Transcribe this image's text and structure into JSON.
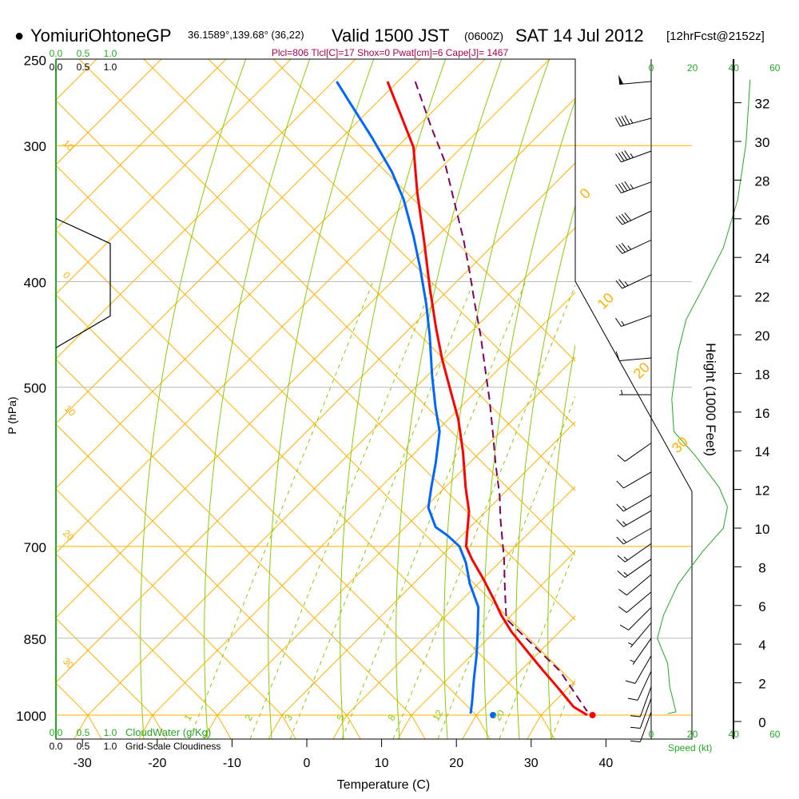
{
  "header": {
    "bullet": "●",
    "station": "YomiuriOhtoneGP",
    "coords": "36.1589°,139.68° (36,22)",
    "valid": "Valid 1500 JST",
    "utc": "(0600Z)",
    "date": "SAT 14 Jul 2012",
    "forecast": "[12hrFcst@2152z]",
    "indices": "Plcl=806 Tlcl[C]=17 Shox=0 Pwat[cm]=6 Cape[J]= 1467"
  },
  "colors": {
    "temperature": "#ff0000",
    "dewpoint": "#0066ff",
    "parcel": "#800060",
    "isotherm": "#ffb000",
    "moist": "#88cc00",
    "speed": "#22aa22",
    "indices": "#b0004f"
  },
  "chart_data": {
    "type": "line",
    "subtype": "skew-t log-p sounding",
    "xlabel": "Temperature (C)",
    "ylabel": "P (hPa)",
    "x_ticks": [
      "-30",
      "-20",
      "-10",
      "0",
      "10",
      "20",
      "30",
      "40"
    ],
    "x_tick_values": [
      -30,
      -20,
      -10,
      0,
      10,
      20,
      30,
      40
    ],
    "pressure_levels": [
      {
        "label": "250",
        "value": 250,
        "style": "none"
      },
      {
        "label": "300",
        "value": 300,
        "style": "orange"
      },
      {
        "label": "400",
        "value": 400,
        "style": "gray"
      },
      {
        "label": "500",
        "value": 500,
        "style": "gray"
      },
      {
        "label": "700",
        "value": 700,
        "style": "orange"
      },
      {
        "label": "850",
        "value": 850,
        "style": "gray"
      },
      {
        "label": "1000",
        "value": 1000,
        "style": "orange"
      }
    ],
    "isotherm_labels_left": [
      "10",
      "0",
      "10",
      "20",
      "30"
    ],
    "isotherm_labels_right": [
      "0",
      "10",
      "20",
      "30"
    ],
    "mixing_ratio_labels": [
      "1",
      "2",
      "3",
      "5",
      "8",
      "12",
      "20"
    ],
    "series": [
      {
        "name": "Temperature",
        "points": [
          [
            262,
            -35.8
          ],
          [
            282,
            -31.4
          ],
          [
            301,
            -27.5
          ],
          [
            331,
            -23.7
          ],
          [
            366,
            -19.3
          ],
          [
            405,
            -15.0
          ],
          [
            441,
            -11.2
          ],
          [
            471,
            -8.1
          ],
          [
            505,
            -4.5
          ],
          [
            535,
            -1.5
          ],
          [
            573,
            1.5
          ],
          [
            618,
            4.5
          ],
          [
            650,
            6.7
          ],
          [
            684,
            8.2
          ],
          [
            700,
            8.9
          ],
          [
            719,
            10.6
          ],
          [
            750,
            13.6
          ],
          [
            783,
            16.5
          ],
          [
            810,
            18.7
          ],
          [
            838,
            21.2
          ],
          [
            874,
            24.8
          ],
          [
            911,
            28.4
          ],
          [
            943,
            31.5
          ],
          [
            983,
            35.1
          ],
          [
            1000,
            37.5
          ]
        ]
      },
      {
        "name": "Dewpoint",
        "points": [
          [
            262,
            -42.6
          ],
          [
            275,
            -39.0
          ],
          [
            294,
            -34.0
          ],
          [
            317,
            -28.6
          ],
          [
            336,
            -25.0
          ],
          [
            363,
            -21.0
          ],
          [
            388,
            -17.8
          ],
          [
            419,
            -14.3
          ],
          [
            448,
            -11.5
          ],
          [
            488,
            -8.2
          ],
          [
            522,
            -5.4
          ],
          [
            549,
            -3.1
          ],
          [
            587,
            -1.3
          ],
          [
            618,
            -0.1
          ],
          [
            645,
            1.0
          ],
          [
            672,
            3.4
          ],
          [
            684,
            5.6
          ],
          [
            700,
            8.0
          ],
          [
            725,
            10.1
          ],
          [
            757,
            12.1
          ],
          [
            796,
            15.0
          ],
          [
            838,
            16.7
          ],
          [
            881,
            18.3
          ],
          [
            927,
            19.7
          ],
          [
            975,
            21.2
          ],
          [
            997,
            21.8
          ]
        ]
      },
      {
        "name": "Parcel",
        "points": [
          [
            262,
            -32.1
          ],
          [
            289,
            -26.5
          ],
          [
            309,
            -22.5
          ],
          [
            336,
            -18.3
          ],
          [
            366,
            -14.0
          ],
          [
            392,
            -10.8
          ],
          [
            419,
            -7.8
          ],
          [
            448,
            -4.7
          ],
          [
            480,
            -1.7
          ],
          [
            513,
            1.2
          ],
          [
            549,
            4.0
          ],
          [
            587,
            6.7
          ],
          [
            628,
            9.6
          ],
          [
            661,
            11.5
          ],
          [
            719,
            14.9
          ],
          [
            770,
            17.4
          ],
          [
            816,
            19.6
          ],
          [
            852,
            23.9
          ],
          [
            911,
            30.6
          ],
          [
            992,
            37.2
          ]
        ]
      }
    ],
    "surface": {
      "temperature": 38.2,
      "dewpoint": 24.9,
      "pressure": 1000
    },
    "cloud_panel": {
      "top_labels_green": [
        "0.0",
        "0.5",
        "1.0"
      ],
      "top_labels_black": [
        "0.0",
        "0.5",
        "1.0"
      ],
      "bottom_labels_green": [
        "0.0",
        "0.5",
        "1.0"
      ],
      "bottom_labels_black": [
        "0.0",
        "0.5",
        "1.0"
      ],
      "cloudwater_label": "CloudWater (g/Kg)",
      "cloudiness_label": "Grid-Scale Cloudiness",
      "cloudiness_points": [
        [
          350,
          0.0
        ],
        [
          369,
          1.0
        ],
        [
          430,
          1.0
        ],
        [
          460,
          0.0
        ]
      ]
    },
    "speed_panel": {
      "xlabel": "Speed (kt)",
      "ticks": [
        "0",
        "20",
        "40",
        "60"
      ],
      "tick_values": [
        0,
        20,
        40,
        60
      ],
      "profile": [
        [
          33.2,
          48
        ],
        [
          29.9,
          46
        ],
        [
          27.0,
          42
        ],
        [
          24.5,
          35
        ],
        [
          22.4,
          25
        ],
        [
          20.8,
          17
        ],
        [
          19.1,
          13
        ],
        [
          16.7,
          10
        ],
        [
          15.0,
          11
        ],
        [
          13.8,
          21
        ],
        [
          12.1,
          33
        ],
        [
          11.1,
          37
        ],
        [
          10.0,
          35
        ],
        [
          8.8,
          25
        ],
        [
          7.1,
          13
        ],
        [
          5.5,
          6
        ],
        [
          4.3,
          3
        ],
        [
          3.0,
          8
        ],
        [
          1.8,
          9
        ],
        [
          0.5,
          12
        ],
        [
          0.4,
          8
        ]
      ]
    },
    "height_axis": {
      "label": "Height (1000 Feet)",
      "ticks": [
        "0",
        "2",
        "4",
        "6",
        "8",
        "10",
        "12",
        "14",
        "16",
        "18",
        "20",
        "22",
        "24",
        "26",
        "28",
        "30",
        "32"
      ],
      "tick_values": [
        0,
        2,
        4,
        6,
        8,
        10,
        12,
        14,
        16,
        18,
        20,
        22,
        24,
        26,
        28,
        30,
        32
      ]
    },
    "wind_barbs": [
      {
        "h": 33.1,
        "speed": 50,
        "dir": 265
      },
      {
        "h": 31.2,
        "speed": 45,
        "dir": 255
      },
      {
        "h": 29.5,
        "speed": 45,
        "dir": 250
      },
      {
        "h": 27.9,
        "speed": 45,
        "dir": 250
      },
      {
        "h": 26.4,
        "speed": 40,
        "dir": 245
      },
      {
        "h": 24.9,
        "speed": 35,
        "dir": 245
      },
      {
        "h": 23.1,
        "speed": 25,
        "dir": 245
      },
      {
        "h": 21.0,
        "speed": 15,
        "dir": 250
      },
      {
        "h": 18.8,
        "speed": 10,
        "dir": 265
      },
      {
        "h": 16.9,
        "speed": 5,
        "dir": 270
      },
      {
        "h": 14.4,
        "speed": 10,
        "dir": 235
      },
      {
        "h": 12.9,
        "speed": 10,
        "dir": 240
      },
      {
        "h": 11.7,
        "speed": 15,
        "dir": 240
      },
      {
        "h": 10.9,
        "speed": 15,
        "dir": 240
      },
      {
        "h": 10.0,
        "speed": 15,
        "dir": 240
      },
      {
        "h": 9.2,
        "speed": 15,
        "dir": 235
      },
      {
        "h": 8.4,
        "speed": 15,
        "dir": 235
      },
      {
        "h": 7.6,
        "speed": 10,
        "dir": 230
      },
      {
        "h": 6.7,
        "speed": 10,
        "dir": 230
      },
      {
        "h": 5.9,
        "speed": 10,
        "dir": 225
      },
      {
        "h": 5.1,
        "speed": 5,
        "dir": 220
      },
      {
        "h": 4.3,
        "speed": 5,
        "dir": 215
      },
      {
        "h": 3.4,
        "speed": 10,
        "dir": 210
      },
      {
        "h": 2.6,
        "speed": 10,
        "dir": 205
      },
      {
        "h": 1.8,
        "speed": 10,
        "dir": 200
      },
      {
        "h": 1.2,
        "speed": 10,
        "dir": 200
      },
      {
        "h": 0.5,
        "speed": 10,
        "dir": 200
      }
    ]
  }
}
